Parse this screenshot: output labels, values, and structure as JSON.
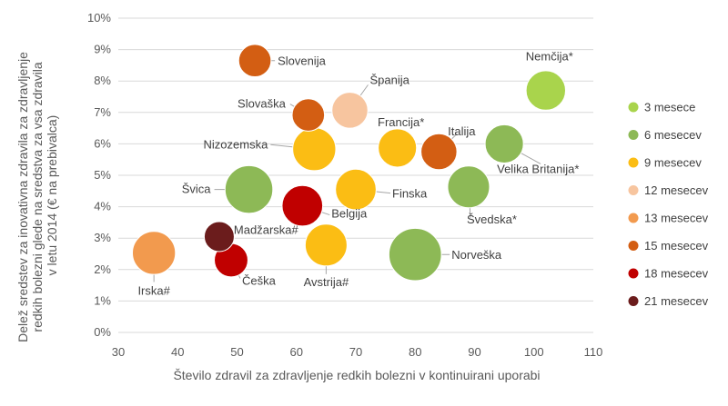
{
  "chart_data": {
    "type": "scatter",
    "xlabel": "Število zdravil za zdravljenje redkih bolezni v kontinuirani uporabi",
    "ylabel": "Delež sredstev za inovativna zdravila za zdravljenje redkih bolezni glede na sredstva za vsa zdravila v letu 2014 (€ na prebivalca)",
    "xlim": [
      30,
      110
    ],
    "ylim": [
      0,
      10
    ],
    "x_ticks": [
      "30",
      "40",
      "50",
      "60",
      "70",
      "80",
      "90",
      "100",
      "110"
    ],
    "y_ticks": [
      "0%",
      "1%",
      "2%",
      "3%",
      "4%",
      "5%",
      "6%",
      "7%",
      "8%",
      "9%",
      "10%"
    ],
    "grid": "horizontal",
    "legend_position": "right",
    "series": [
      {
        "name": "3 mesece",
        "color": "#a9d44c"
      },
      {
        "name": "6 mesecev",
        "color": "#8db956"
      },
      {
        "name": "9 mesecev",
        "color": "#fbbd14"
      },
      {
        "name": "12 mesecev",
        "color": "#f7c59f"
      },
      {
        "name": "13 mesecev",
        "color": "#f29a4e"
      },
      {
        "name": "15 mesecev",
        "color": "#d35e13"
      },
      {
        "name": "18 mesecev",
        "color": "#c00000"
      },
      {
        "name": "21 mesecev",
        "color": "#6b1c1c"
      }
    ],
    "points": [
      {
        "label": "Nemčija*",
        "x": 102,
        "y": 7.7,
        "size": 0.9,
        "series": 0
      },
      {
        "label": "Velika Britanija*",
        "x": 95,
        "y": 6.0,
        "size": 0.85,
        "series": 1
      },
      {
        "label": "Švedska*",
        "x": 89,
        "y": 4.63,
        "size": 1.0,
        "series": 1
      },
      {
        "label": "Norveška",
        "x": 80,
        "y": 2.48,
        "size": 1.45,
        "series": 1
      },
      {
        "label": "Švica",
        "x": 52,
        "y": 4.55,
        "size": 1.25,
        "series": 1
      },
      {
        "label": "Nizozemska",
        "x": 63,
        "y": 5.83,
        "size": 1.05,
        "series": 2
      },
      {
        "label": "Francija*",
        "x": 77,
        "y": 5.87,
        "size": 0.85,
        "series": 2
      },
      {
        "label": "Finska",
        "x": 70,
        "y": 4.55,
        "size": 0.95,
        "series": 2
      },
      {
        "label": "Avstrija#",
        "x": 65,
        "y": 2.78,
        "size": 1.0,
        "series": 2
      },
      {
        "label": "Španija",
        "x": 69,
        "y": 7.07,
        "size": 0.75,
        "series": 3
      },
      {
        "label": "Irska#",
        "x": 36,
        "y": 2.53,
        "size": 1.05,
        "series": 4
      },
      {
        "label": "Slovenija",
        "x": 53,
        "y": 8.65,
        "size": 0.6,
        "series": 5
      },
      {
        "label": "Slovaška",
        "x": 62,
        "y": 6.92,
        "size": 0.6,
        "series": 5
      },
      {
        "label": "Italija",
        "x": 84,
        "y": 5.75,
        "size": 0.75,
        "series": 5
      },
      {
        "label": "Belgija",
        "x": 61,
        "y": 4.03,
        "size": 0.95,
        "series": 6
      },
      {
        "label": "Češka",
        "x": 49,
        "y": 2.3,
        "size": 0.65,
        "series": 6
      },
      {
        "label": "Madžarska#",
        "x": 47,
        "y": 3.05,
        "size": 0.5,
        "series": 7
      }
    ]
  }
}
